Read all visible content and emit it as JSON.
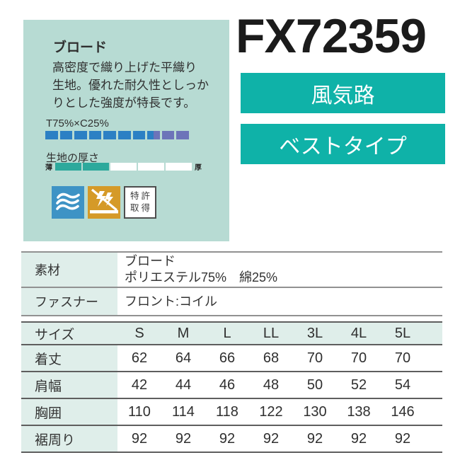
{
  "colors": {
    "card_bg": "#b7dbd3",
    "tag": "#0fb2a8",
    "blend_primary": "#2c80c4",
    "blend_secondary": "#6d74b9",
    "thickness_fill": "#2ca99c",
    "table_label_bg": "#dfeeea",
    "wave_icon_bg": "#3e93c5",
    "antistatic_icon_bg": "#d59a28"
  },
  "info_card": {
    "title": "ブロード",
    "description_lines": [
      "高密度で織り上げた平織り",
      "生地。優れた耐久性としっか",
      "りとした強度が特長です。"
    ],
    "blend": {
      "label": "T75%×C25%",
      "segments_total": 10,
      "segments_primary": 7.5
    },
    "thickness": {
      "label": "生地の厚さ",
      "min_label": "薄",
      "max_label": "厚",
      "segments_total": 5,
      "segments_filled": 2
    },
    "patent_badge": {
      "line1": "特許",
      "line2": "取得"
    },
    "icon_names": [
      "breathability-icon",
      "anti-static-icon",
      "patent-badge"
    ]
  },
  "product": {
    "code": "FX72359",
    "tags": [
      "風気路",
      "ベストタイプ"
    ]
  },
  "spec_table": {
    "rows": [
      {
        "label": "素材",
        "value_lines": [
          "ブロード",
          "ポリエステル75%　綿25%"
        ]
      },
      {
        "label": "ファスナー",
        "value_lines": [
          "フロント:コイル"
        ]
      }
    ]
  },
  "size_table": {
    "header": [
      "サイズ",
      "S",
      "M",
      "L",
      "LL",
      "3L",
      "4L",
      "5L"
    ],
    "rows": [
      {
        "label": "着丈",
        "values": [
          "62",
          "64",
          "66",
          "68",
          "70",
          "70",
          "70"
        ]
      },
      {
        "label": "肩幅",
        "values": [
          "42",
          "44",
          "46",
          "48",
          "50",
          "52",
          "54"
        ]
      },
      {
        "label": "胸囲",
        "values": [
          "110",
          "114",
          "118",
          "122",
          "130",
          "138",
          "146"
        ]
      },
      {
        "label": "裾周り",
        "values": [
          "92",
          "92",
          "92",
          "92",
          "92",
          "92",
          "92"
        ]
      }
    ]
  }
}
